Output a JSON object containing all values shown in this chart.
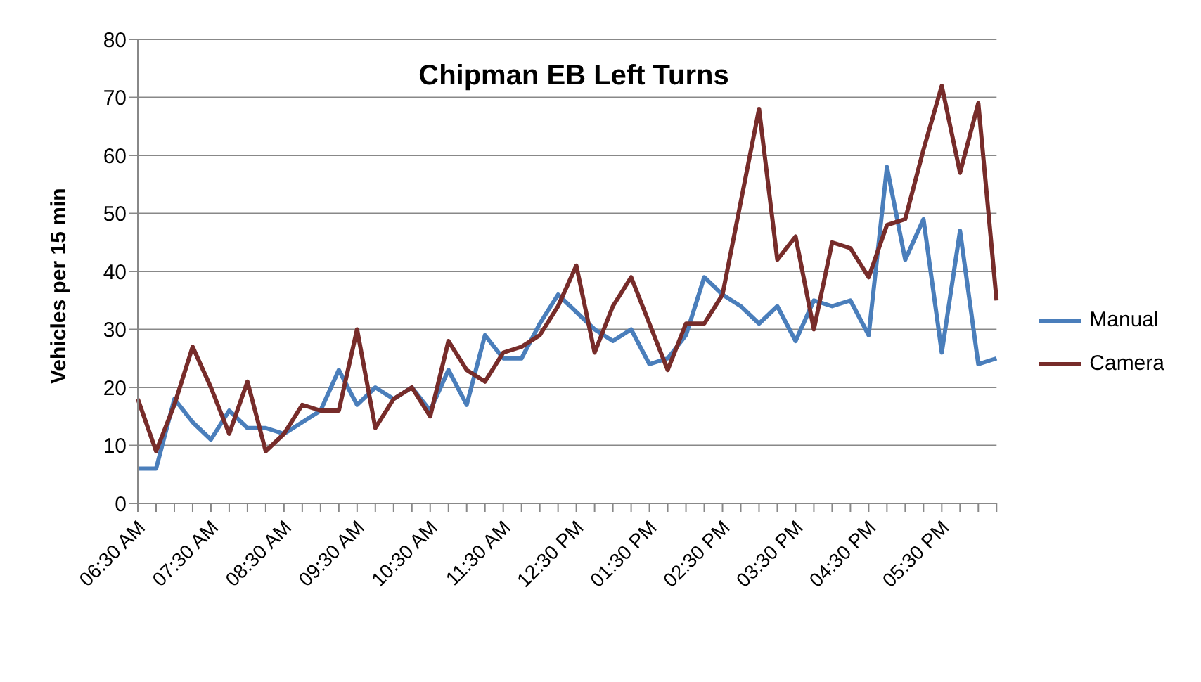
{
  "chart_data": {
    "type": "line",
    "title": "Chipman EB Left Turns",
    "ylabel": "Vehicles per 15 min",
    "categories": [
      "06:30 AM",
      null,
      null,
      null,
      "07:30 AM",
      null,
      null,
      null,
      "08:30 AM",
      null,
      null,
      null,
      "09:30 AM",
      null,
      null,
      null,
      "10:30 AM",
      null,
      null,
      null,
      "11:30 AM",
      null,
      null,
      null,
      "12:30 PM",
      null,
      null,
      null,
      "01:30 PM",
      null,
      null,
      null,
      "02:30 PM",
      null,
      null,
      null,
      "03:30 PM",
      null,
      null,
      null,
      "04:30 PM",
      null,
      null,
      null,
      "05:30 PM",
      null,
      null,
      null
    ],
    "series": [
      {
        "name": "Manual",
        "color": "#4a7ebb",
        "values": [
          6,
          6,
          18,
          14,
          11,
          16,
          13,
          13,
          12,
          14,
          16,
          23,
          17,
          20,
          18,
          20,
          16,
          23,
          17,
          29,
          25,
          25,
          31,
          36,
          33,
          30,
          28,
          30,
          24,
          25,
          29,
          39,
          36,
          34,
          31,
          34,
          28,
          35,
          34,
          35,
          29,
          58,
          42,
          49,
          26,
          47,
          24,
          25
        ]
      },
      {
        "name": "Camera",
        "color": "#772c2a",
        "values": [
          18,
          9,
          17,
          27,
          20,
          12,
          21,
          9,
          12,
          17,
          16,
          16,
          30,
          13,
          18,
          20,
          15,
          28,
          23,
          21,
          26,
          27,
          29,
          34,
          41,
          26,
          34,
          39,
          31,
          23,
          31,
          31,
          36,
          52,
          68,
          42,
          46,
          30,
          45,
          44,
          39,
          48,
          49,
          61,
          72,
          57,
          69,
          35
        ]
      }
    ],
    "ylim": [
      0,
      80
    ],
    "yticks": [
      0,
      10,
      20,
      30,
      40,
      50,
      60,
      70,
      80
    ],
    "grid": "y",
    "legend": "right",
    "marker": "none",
    "line_style": "solid"
  }
}
